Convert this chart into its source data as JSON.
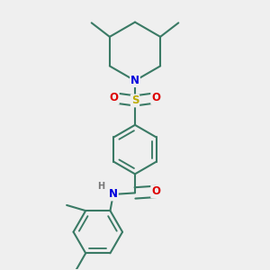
{
  "bg_color": "#efefef",
  "bond_color": "#3a7a65",
  "bond_width": 1.5,
  "atom_colors": {
    "N": "#0000dd",
    "O": "#dd0000",
    "S": "#bbaa00",
    "H": "#777777",
    "C": "#3a7a65"
  },
  "font_size_atom": 8.5,
  "font_size_h": 7.0,
  "xlim": [
    0.15,
    0.85
  ],
  "ylim": [
    0.02,
    0.98
  ]
}
